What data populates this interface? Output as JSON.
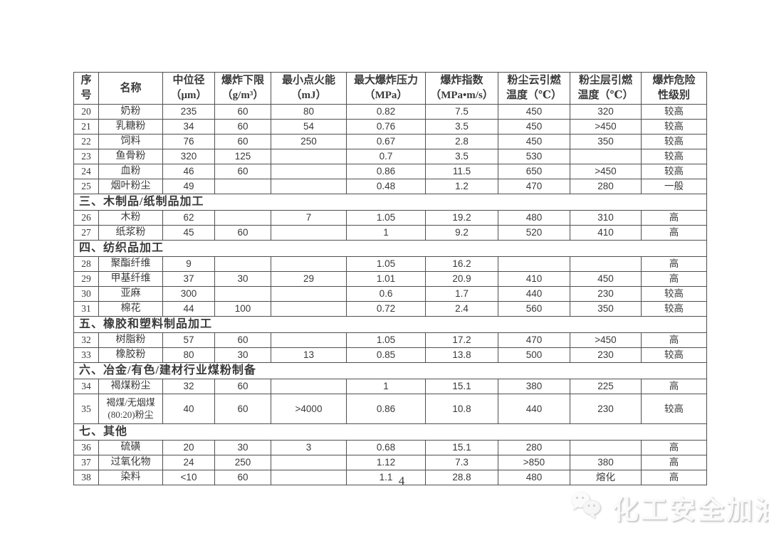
{
  "colors": {
    "text": "#3a3a3a",
    "border": "#4f4f4f",
    "watermark": "#e9e9e9"
  },
  "page": {
    "number": "4",
    "watermark_text": "化工安全加油站"
  },
  "table": {
    "headers": [
      "序\n号",
      "名称",
      "中位径\n（μm）",
      "爆炸下限\n（g/m³）",
      "最小点火能\n（mJ）",
      "最大爆炸压力\n（MPa）",
      "爆炸指数\n（MPa•m/s）",
      "粉尘云引燃\n温度（℃）",
      "粉尘层引燃\n温度（℃）",
      "爆炸危险\n性级别"
    ],
    "rows": [
      {
        "type": "data",
        "cells": [
          "20",
          "奶粉",
          "235",
          "60",
          "80",
          "0.82",
          "7.5",
          "450",
          "320",
          "较高"
        ]
      },
      {
        "type": "data",
        "cells": [
          "21",
          "乳糖粉",
          "34",
          "60",
          "54",
          "0.76",
          "3.5",
          "450",
          ">450",
          "较高"
        ]
      },
      {
        "type": "data",
        "cells": [
          "22",
          "饲料",
          "76",
          "60",
          "250",
          "0.67",
          "2.8",
          "450",
          "350",
          "较高"
        ]
      },
      {
        "type": "data",
        "cells": [
          "23",
          "鱼骨粉",
          "320",
          "125",
          "",
          "0.7",
          "3.5",
          "530",
          "",
          "较高"
        ]
      },
      {
        "type": "data",
        "cells": [
          "24",
          "血粉",
          "46",
          "60",
          "",
          "0.86",
          "11.5",
          "650",
          ">450",
          "较高"
        ]
      },
      {
        "type": "data",
        "cells": [
          "25",
          "烟叶粉尘",
          "49",
          "",
          "",
          "0.48",
          "1.2",
          "470",
          "280",
          "一般"
        ]
      },
      {
        "type": "section",
        "title": "三、木制品/纸制品加工"
      },
      {
        "type": "data",
        "cells": [
          "26",
          "木粉",
          "62",
          "",
          "7",
          "1.05",
          "19.2",
          "480",
          "310",
          "高"
        ]
      },
      {
        "type": "data",
        "cells": [
          "27",
          "纸浆粉",
          "45",
          "60",
          "",
          "1",
          "9.2",
          "520",
          "410",
          "高"
        ]
      },
      {
        "type": "section",
        "title": "四、纺织品加工"
      },
      {
        "type": "data",
        "cells": [
          "28",
          "聚酯纤维",
          "9",
          "",
          "",
          "1.05",
          "16.2",
          "",
          "",
          "高"
        ]
      },
      {
        "type": "data",
        "cells": [
          "29",
          "甲基纤维",
          "37",
          "30",
          "29",
          "1.01",
          "20.9",
          "410",
          "450",
          "高"
        ]
      },
      {
        "type": "data",
        "cells": [
          "30",
          "亚麻",
          "300",
          "",
          "",
          "0.6",
          "1.7",
          "440",
          "230",
          "较高"
        ]
      },
      {
        "type": "data",
        "cells": [
          "31",
          "棉花",
          "44",
          "100",
          "",
          "0.72",
          "2.4",
          "560",
          "350",
          "较高"
        ]
      },
      {
        "type": "section",
        "title": "五、橡胶和塑料制品加工"
      },
      {
        "type": "data",
        "cells": [
          "32",
          "树脂粉",
          "57",
          "60",
          "",
          "1.05",
          "17.2",
          "470",
          ">450",
          "高"
        ]
      },
      {
        "type": "data",
        "cells": [
          "33",
          "橡胶粉",
          "80",
          "30",
          "13",
          "0.85",
          "13.8",
          "500",
          "230",
          "较高"
        ]
      },
      {
        "type": "section",
        "title": "六、冶金/有色/建材行业煤粉制备"
      },
      {
        "type": "data",
        "cells": [
          "34",
          "褐煤粉尘",
          "32",
          "60",
          "",
          "1",
          "15.1",
          "380",
          "225",
          "高"
        ]
      },
      {
        "type": "data",
        "tall": true,
        "cells": [
          "35",
          "褐煤/无烟煤\n(80:20)粉尘",
          "40",
          "60",
          ">4000",
          "0.86",
          "10.8",
          "440",
          "230",
          "较高"
        ]
      },
      {
        "type": "section",
        "title": "七、其他"
      },
      {
        "type": "data",
        "cells": [
          "36",
          "硫磺",
          "20",
          "30",
          "3",
          "0.68",
          "15.1",
          "280",
          "",
          "高"
        ]
      },
      {
        "type": "data",
        "cells": [
          "37",
          "过氧化物",
          "24",
          "250",
          "",
          "1.12",
          "7.3",
          ">850",
          "380",
          "高"
        ]
      },
      {
        "type": "data",
        "cells": [
          "38",
          "染料",
          "<10",
          "60",
          "",
          "1.1",
          "28.8",
          "480",
          "熔化",
          "高"
        ]
      }
    ]
  }
}
